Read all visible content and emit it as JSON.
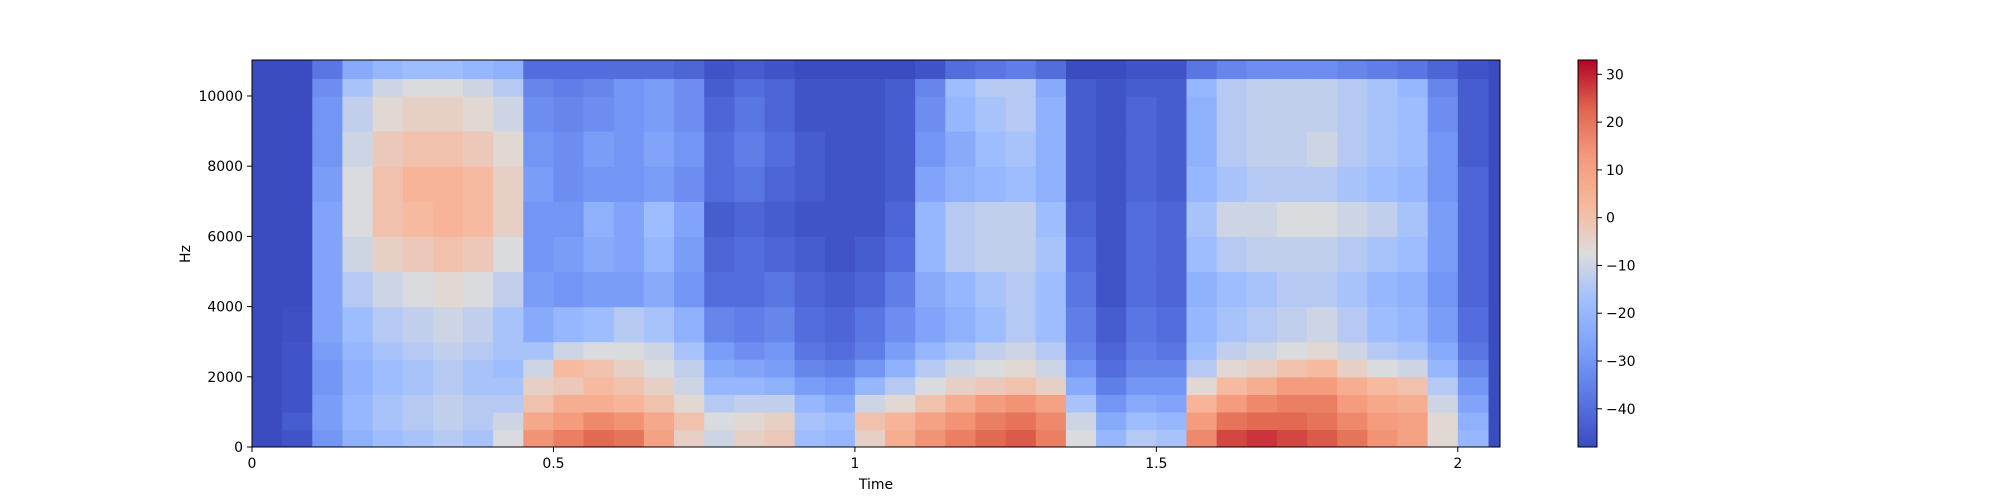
{
  "chart_data": {
    "type": "heatmap",
    "title": "",
    "xlabel": "Time",
    "ylabel": "Hz",
    "xlim": [
      0,
      2.07
    ],
    "ylim": [
      0,
      11025
    ],
    "x_ticks": [
      {
        "value": 0,
        "label": "0"
      },
      {
        "value": 0.5,
        "label": "0.5"
      },
      {
        "value": 1,
        "label": "1"
      },
      {
        "value": 1.5,
        "label": "1.5"
      },
      {
        "value": 2,
        "label": "2"
      }
    ],
    "y_ticks": [
      {
        "value": 0,
        "label": "0"
      },
      {
        "value": 2000,
        "label": "2000"
      },
      {
        "value": 4000,
        "label": "4000"
      },
      {
        "value": 6000,
        "label": "6000"
      },
      {
        "value": 8000,
        "label": "8000"
      },
      {
        "value": 10000,
        "label": "10000"
      }
    ],
    "colormap": "coolwarm",
    "colorbar": {
      "range": [
        -48,
        33
      ],
      "ticks": [
        {
          "value": 30,
          "label": "30"
        },
        {
          "value": 20,
          "label": "20"
        },
        {
          "value": 10,
          "label": "10"
        },
        {
          "value": 0,
          "label": "0"
        },
        {
          "value": -10,
          "label": "−10"
        },
        {
          "value": -20,
          "label": "−20"
        },
        {
          "value": -30,
          "label": "−30"
        },
        {
          "value": -40,
          "label": "−40"
        }
      ]
    },
    "time_frames": [
      0,
      0.05,
      0.1,
      0.15,
      0.2,
      0.25,
      0.3,
      0.35,
      0.4,
      0.45,
      0.5,
      0.55,
      0.6,
      0.65,
      0.7,
      0.75,
      0.8,
      0.85,
      0.9,
      0.95,
      1.0,
      1.05,
      1.1,
      1.15,
      1.2,
      1.25,
      1.3,
      1.35,
      1.4,
      1.45,
      1.5,
      1.55,
      1.6,
      1.65,
      1.7,
      1.75,
      1.8,
      1.85,
      1.9,
      1.95,
      2.0
    ],
    "freq_bins": [
      0,
      500,
      1000,
      1500,
      2000,
      2500,
      3000,
      4000,
      5000,
      6000,
      7000,
      8000,
      9000,
      10000,
      10500
    ],
    "db_matrix": [
      [
        -48,
        -48,
        -48,
        -48,
        -48,
        -48,
        -48,
        -48,
        -48,
        -48,
        -48,
        -48,
        -48,
        -48,
        -48
      ],
      [
        -46,
        -44,
        -46,
        -46,
        -46,
        -46,
        -47,
        -48,
        -48,
        -48,
        -48,
        -48,
        -48,
        -48,
        -48
      ],
      [
        -30,
        -28,
        -28,
        -30,
        -30,
        -28,
        -26,
        -26,
        -26,
        -26,
        -28,
        -30,
        -30,
        -32,
        -38
      ],
      [
        -22,
        -20,
        -20,
        -22,
        -22,
        -20,
        -18,
        -14,
        -10,
        -8,
        -8,
        -10,
        -12,
        -16,
        -24
      ],
      [
        -18,
        -16,
        -16,
        -18,
        -18,
        -16,
        -14,
        -10,
        -4,
        0,
        0,
        -2,
        -6,
        -10,
        -20
      ],
      [
        -16,
        -14,
        -14,
        -16,
        -16,
        -14,
        -12,
        -8,
        -2,
        2,
        4,
        0,
        -4,
        -8,
        -18
      ],
      [
        -14,
        -12,
        -12,
        -14,
        -14,
        -12,
        -10,
        -6,
        0,
        4,
        4,
        0,
        -4,
        -8,
        -18
      ],
      [
        -16,
        -14,
        -14,
        -16,
        -16,
        -14,
        -12,
        -8,
        -2,
        2,
        2,
        -2,
        -6,
        -10,
        -20
      ],
      [
        -8,
        -10,
        -14,
        -16,
        -18,
        -16,
        -16,
        -12,
        -8,
        -4,
        -4,
        -6,
        -10,
        -14,
        -22
      ],
      [
        14,
        8,
        0,
        -4,
        -10,
        -16,
        -24,
        -28,
        -30,
        -30,
        -28,
        -30,
        -32,
        -34,
        -40
      ],
      [
        18,
        12,
        6,
        -2,
        2,
        -10,
        -20,
        -30,
        -28,
        -30,
        -32,
        -32,
        -34,
        -36,
        -40
      ],
      [
        22,
        16,
        6,
        2,
        0,
        -8,
        -18,
        -28,
        -24,
        -22,
        -30,
        -28,
        -32,
        -34,
        -40
      ],
      [
        20,
        14,
        4,
        0,
        -4,
        -8,
        -14,
        -28,
        -26,
        -26,
        -30,
        -30,
        -30,
        -30,
        -40
      ],
      [
        10,
        8,
        0,
        -4,
        -8,
        -10,
        -16,
        -24,
        -20,
        -18,
        -28,
        -26,
        -28,
        -28,
        -40
      ],
      [
        -4,
        0,
        -6,
        -10,
        -12,
        -16,
        -22,
        -30,
        -28,
        -26,
        -32,
        -30,
        -32,
        -32,
        -42
      ],
      [
        -10,
        -8,
        -14,
        -20,
        -24,
        -28,
        -34,
        -40,
        -42,
        -44,
        -40,
        -40,
        -42,
        -44,
        -46
      ],
      [
        -4,
        -6,
        -12,
        -20,
        -26,
        -32,
        -36,
        -40,
        -40,
        -42,
        -38,
        -36,
        -38,
        -40,
        -44
      ],
      [
        -2,
        -4,
        -12,
        -22,
        -28,
        -30,
        -34,
        -38,
        -42,
        -44,
        -42,
        -40,
        -42,
        -42,
        -46
      ],
      [
        -18,
        -16,
        -20,
        -28,
        -34,
        -38,
        -40,
        -42,
        -44,
        -46,
        -44,
        -44,
        -46,
        -46,
        -48
      ],
      [
        -20,
        -18,
        -24,
        -30,
        -36,
        -40,
        -42,
        -44,
        -46,
        -46,
        -46,
        -46,
        -46,
        -46,
        -48
      ],
      [
        -4,
        0,
        -10,
        -20,
        -30,
        -36,
        -38,
        -42,
        -44,
        -46,
        -46,
        -46,
        -46,
        -46,
        -48
      ],
      [
        6,
        4,
        -6,
        -14,
        -22,
        -28,
        -32,
        -36,
        -40,
        -42,
        -44,
        -44,
        -44,
        -44,
        -48
      ],
      [
        14,
        10,
        0,
        -8,
        -14,
        -20,
        -26,
        -24,
        -20,
        -20,
        -26,
        -30,
        -32,
        -34,
        -46
      ],
      [
        18,
        14,
        6,
        -4,
        -10,
        -16,
        -22,
        -20,
        -14,
        -14,
        -22,
        -24,
        -20,
        -18,
        -40
      ],
      [
        22,
        18,
        12,
        -2,
        -8,
        -12,
        -18,
        -16,
        -12,
        -12,
        -20,
        -18,
        -16,
        -14,
        -38
      ],
      [
        24,
        20,
        14,
        0,
        -6,
        -10,
        -14,
        -14,
        -12,
        -12,
        -18,
        -16,
        -14,
        -14,
        -36
      ],
      [
        18,
        16,
        10,
        -4,
        -10,
        -14,
        -18,
        -18,
        -16,
        -18,
        -22,
        -22,
        -22,
        -24,
        -40
      ],
      [
        -8,
        -10,
        -16,
        -24,
        -30,
        -34,
        -36,
        -38,
        -40,
        -42,
        -44,
        -44,
        -44,
        -44,
        -48
      ],
      [
        -20,
        -24,
        -30,
        -36,
        -40,
        -42,
        -44,
        -46,
        -46,
        -46,
        -46,
        -46,
        -46,
        -46,
        -48
      ],
      [
        -14,
        -18,
        -24,
        -30,
        -34,
        -36,
        -38,
        -40,
        -40,
        -40,
        -42,
        -42,
        -42,
        -44,
        -46
      ],
      [
        -16,
        -20,
        -26,
        -30,
        -34,
        -38,
        -40,
        -42,
        -42,
        -42,
        -44,
        -44,
        -44,
        -44,
        -46
      ],
      [
        16,
        12,
        4,
        -6,
        -14,
        -18,
        -20,
        -22,
        -18,
        -16,
        -20,
        -22,
        -22,
        -20,
        -38
      ],
      [
        26,
        20,
        12,
        2,
        -6,
        -12,
        -16,
        -18,
        -14,
        -10,
        -16,
        -14,
        -14,
        -14,
        -34
      ],
      [
        28,
        22,
        16,
        6,
        -4,
        -10,
        -14,
        -16,
        -12,
        -10,
        -14,
        -12,
        -12,
        -12,
        -32
      ],
      [
        26,
        22,
        18,
        12,
        0,
        -8,
        -12,
        -14,
        -12,
        -8,
        -14,
        -12,
        -12,
        -12,
        -32
      ],
      [
        24,
        20,
        18,
        12,
        2,
        -6,
        -10,
        -14,
        -12,
        -8,
        -14,
        -10,
        -12,
        -12,
        -32
      ],
      [
        20,
        16,
        12,
        6,
        -4,
        -10,
        -14,
        -16,
        -14,
        -10,
        -16,
        -14,
        -14,
        -14,
        -34
      ],
      [
        14,
        12,
        8,
        2,
        -8,
        -14,
        -18,
        -20,
        -16,
        -12,
        -18,
        -16,
        -16,
        -16,
        -36
      ],
      [
        10,
        10,
        6,
        0,
        -10,
        -16,
        -20,
        -22,
        -18,
        -16,
        -20,
        -18,
        -18,
        -20,
        -38
      ],
      [
        -6,
        -6,
        -10,
        -14,
        -20,
        -24,
        -28,
        -30,
        -28,
        -28,
        -30,
        -30,
        -32,
        -34,
        -42
      ],
      [
        -20,
        -22,
        -26,
        -30,
        -34,
        -38,
        -40,
        -42,
        -42,
        -42,
        -42,
        -44,
        -44,
        -44,
        -46
      ]
    ]
  }
}
